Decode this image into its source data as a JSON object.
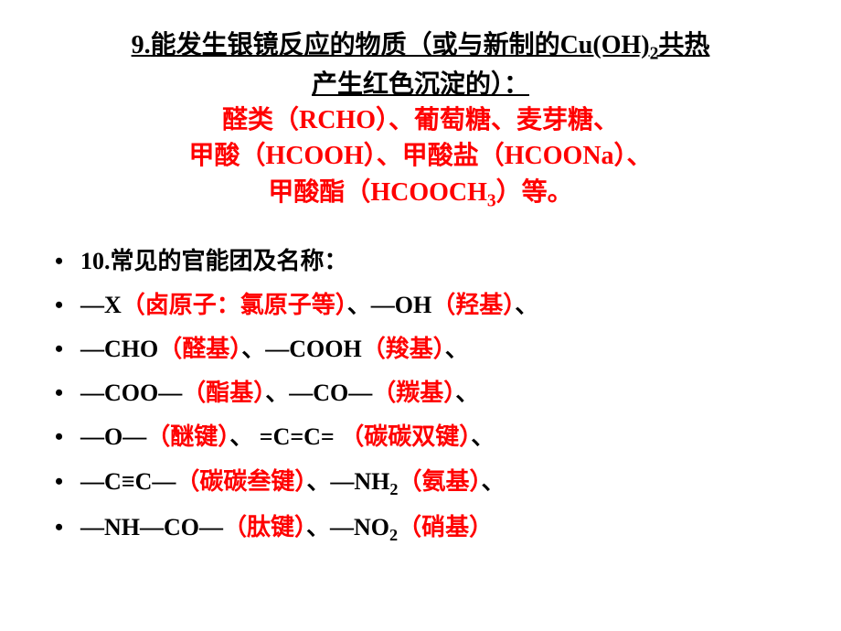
{
  "colors": {
    "background": "#ffffff",
    "title_text": "#000000",
    "body_text": "#000000",
    "highlight": "#ff0000"
  },
  "typography": {
    "title_fontsize": 28,
    "body_fontsize": 26,
    "font_family": "SimSun",
    "font_weight": "bold",
    "title_underline": true
  },
  "title": {
    "line1_a": "9.",
    "line1_b": "能发生银镜反应的物质（或与新制的Cu(OH)",
    "line1_sub": "2",
    "line1_c": "共热",
    "line2": "产生红色沉淀的）：",
    "red1": "醛类（RCHO）、葡萄糖、麦芽糖、",
    "red2_a": "甲酸（HCOOH）、甲酸盐（HCOONa）、",
    "red3_a": "甲酸酯（HCOOCH",
    "red3_sub": "3",
    "red3_b": "）等。"
  },
  "body": {
    "heading": "10.常见的官能团及名称：",
    "items": [
      {
        "black": "—X",
        "red_a": "（卤原子：氯原子等）",
        "black2": "、—OH",
        "red_b": "（羟基）",
        "black3": "、"
      },
      {
        "black": "—CHO",
        "red_a": "（醛基）",
        "black2": "、—COOH",
        "red_b": "（羧基）",
        "black3": "、"
      },
      {
        "black": "—COO—",
        "red_a": "（酯基）",
        "black2": "、—CO—",
        "red_b": "（羰基）",
        "black3": "、"
      },
      {
        "black": "—O—",
        "red_a": "（醚键）",
        "black2": "、  =C=C=  ",
        "red_b": "（碳碳双键）",
        "black3": "、"
      },
      {
        "black": "—C≡C—",
        "red_a": "（碳碳叁键）",
        "black2_a": "、—NH",
        "black2_sub": "2",
        "red_b": "（氨基）",
        "black3": "、"
      },
      {
        "black": "—NH—CO—",
        "red_a": "（肽键）",
        "black2_a": "、—NO",
        "black2_sub": "2",
        "red_b": "（硝基）",
        "black3": ""
      }
    ]
  },
  "bullet": "•"
}
